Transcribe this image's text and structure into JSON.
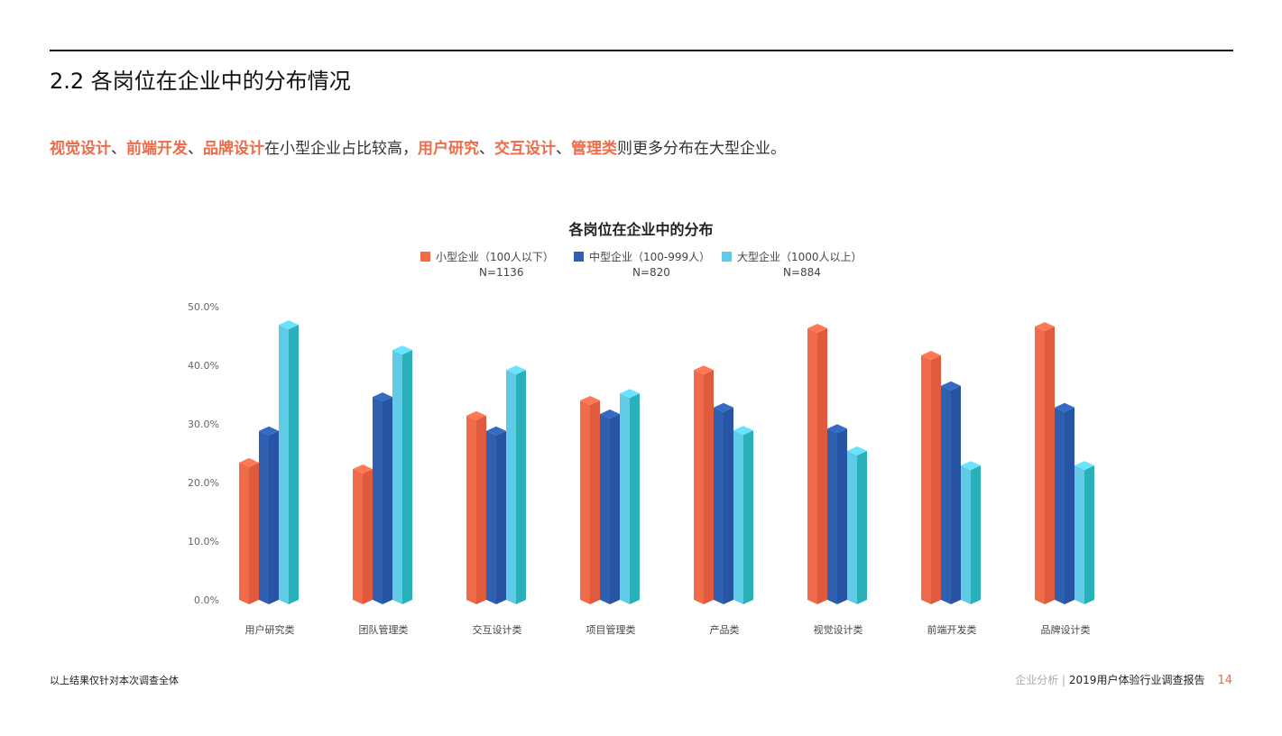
{
  "header": {
    "title": "2.2 各岗位在企业中的分布情况"
  },
  "lead": {
    "h1": "视觉设计",
    "s1": "、",
    "h2": "前端开发",
    "s2": "、",
    "h3": "品牌设计",
    "t1": "在小型企业占比较高，",
    "h4": "用户研究",
    "s3": "、",
    "h5": "交互设计",
    "s4": "、",
    "h6": "管理类",
    "t2": "则更多分布在大型企业。"
  },
  "chart_data": {
    "type": "bar",
    "title": "各岗位在企业中的分布",
    "categories": [
      "用户研究类",
      "团队管理类",
      "交互设计类",
      "项目管理类",
      "产品类",
      "视觉设计类",
      "前端开发类",
      "品牌设计类"
    ],
    "series": [
      {
        "name": "小型企业（100人以下）",
        "n": "N=1136",
        "color": "#ef6b4a",
        "values": [
          23.4,
          22.3,
          31.4,
          34.0,
          39.2,
          46.3,
          41.7,
          46.6
        ]
      },
      {
        "name": "中型企业（100-999人）",
        "n": "N=820",
        "color": "#2f5fb0",
        "values": [
          28.8,
          34.6,
          28.8,
          31.7,
          32.8,
          29.2,
          36.5,
          32.8
        ]
      },
      {
        "name": "大型企业（1000人以上）",
        "n": "N=884",
        "color": "#5fcbe6",
        "values": [
          46.9,
          42.6,
          39.2,
          35.2,
          28.9,
          25.4,
          22.9,
          22.9
        ]
      }
    ],
    "yticks": [
      "0.0%",
      "10.0%",
      "20.0%",
      "30.0%",
      "40.0%",
      "50.0%"
    ],
    "ylim": [
      0,
      50
    ],
    "grid": false,
    "legend": "top-center",
    "style": "3d-isometric-bars"
  },
  "footer": {
    "note": "以上结果仅针对本次调查全体",
    "section": "企业分析 | ",
    "report": "2019用户体验行业调查报告",
    "page": "14"
  }
}
